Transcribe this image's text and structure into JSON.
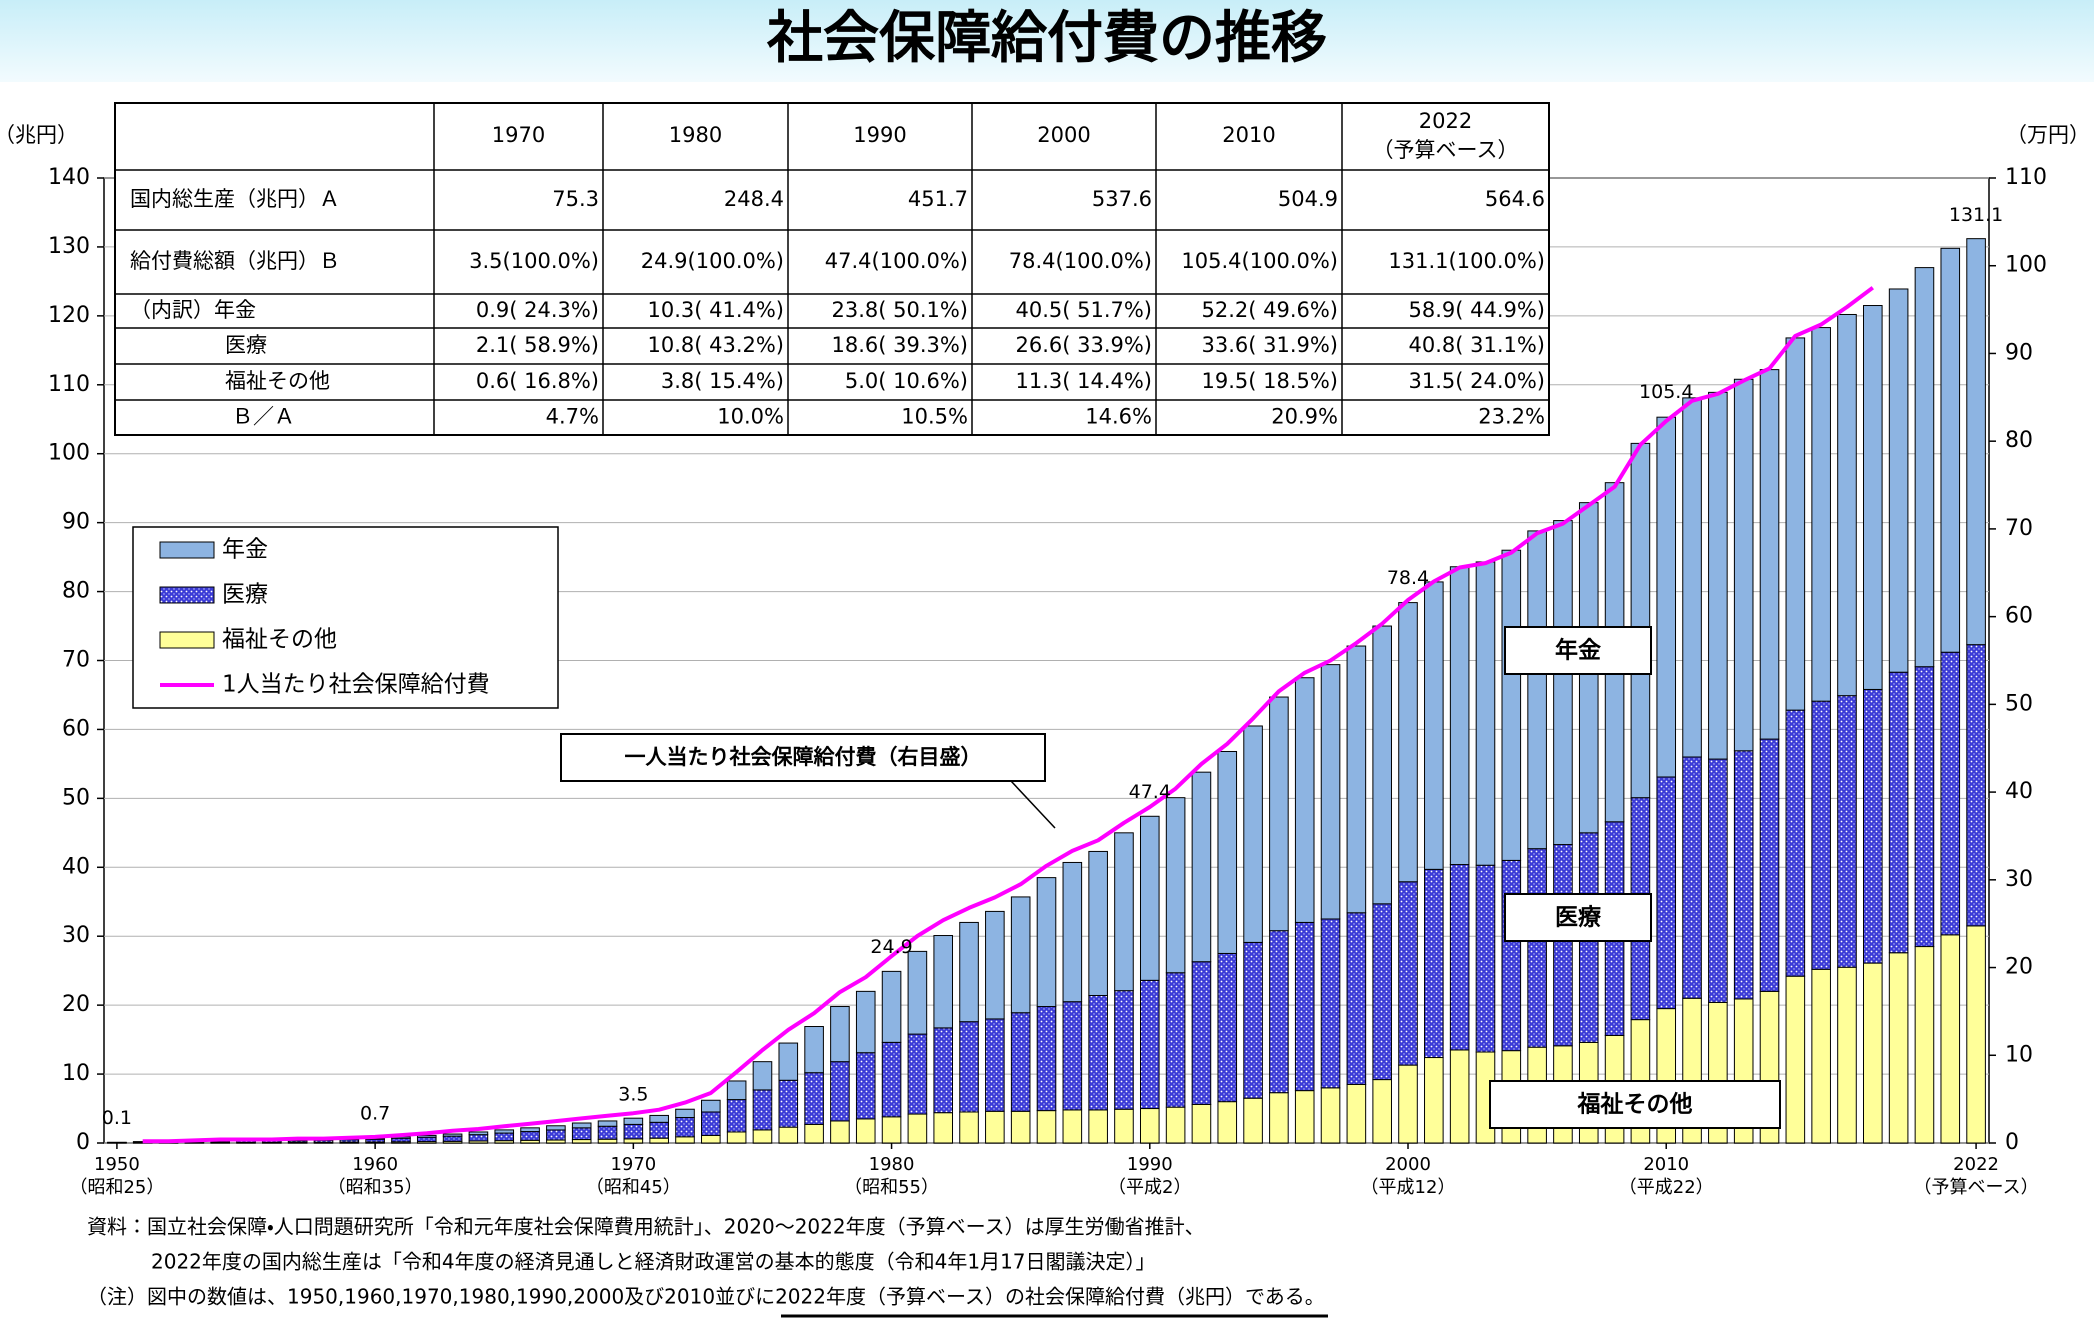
{
  "chart_data": {
    "type": "stacked-bar",
    "title": "社会保障給付費の推移",
    "y_unit": "（兆円）",
    "y2_unit": "（万円）",
    "ylim": [
      0,
      140
    ],
    "yticks": [
      0,
      10,
      20,
      30,
      40,
      50,
      60,
      70,
      80,
      90,
      100,
      110,
      120,
      130,
      140
    ],
    "y2lim": [
      0,
      110
    ],
    "y2ticks": [
      0,
      10,
      20,
      30,
      40,
      50,
      60,
      70,
      80,
      90,
      100,
      110
    ],
    "xlim": [
      1949.5,
      2022.5
    ],
    "xticks": [
      1950,
      1960,
      1970,
      1980,
      1990,
      2000,
      2010,
      2022
    ],
    "x_era_labels": [
      "（昭和25）",
      "（昭和35）",
      "（昭和45）",
      "（昭和55）",
      "（平成2）",
      "（平成12）",
      "（平成22）",
      "（予算ベース）"
    ],
    "grid": true,
    "x": [
      1950,
      1951,
      1952,
      1953,
      1954,
      1955,
      1956,
      1957,
      1958,
      1959,
      1960,
      1961,
      1962,
      1963,
      1964,
      1965,
      1966,
      1967,
      1968,
      1969,
      1970,
      1971,
      1972,
      1973,
      1974,
      1975,
      1976,
      1977,
      1978,
      1979,
      1980,
      1981,
      1982,
      1983,
      1984,
      1985,
      1986,
      1987,
      1988,
      1989,
      1990,
      1991,
      1992,
      1993,
      1994,
      1995,
      1996,
      1997,
      1998,
      1999,
      2000,
      2001,
      2002,
      2003,
      2004,
      2005,
      2006,
      2007,
      2008,
      2009,
      2010,
      2011,
      2012,
      2013,
      2014,
      2015,
      2016,
      2017,
      2018,
      2019,
      2020,
      2021,
      2022
    ],
    "series": [
      {
        "name": "年金",
        "color": "#8db4e2",
        "values": [
          0.02,
          0.04,
          0.04,
          0.06,
          0.06,
          0.08,
          0.08,
          0.08,
          0.1,
          0.12,
          0.15,
          0.21,
          0.26,
          0.31,
          0.39,
          0.46,
          0.54,
          0.61,
          0.7,
          0.77,
          0.9,
          1.0,
          1.2,
          1.7,
          2.7,
          4.1,
          5.4,
          6.7,
          8.0,
          8.9,
          10.3,
          12.0,
          13.4,
          14.4,
          15.6,
          16.8,
          18.7,
          20.2,
          20.9,
          22.9,
          23.8,
          25.4,
          27.5,
          29.3,
          31.4,
          33.9,
          35.5,
          36.9,
          38.7,
          40.3,
          40.5,
          41.7,
          43.2,
          44.0,
          45.0,
          46.1,
          47.0,
          47.9,
          49.2,
          51.4,
          52.2,
          52.1,
          53.2,
          53.9,
          53.6,
          54.0,
          54.2,
          55.3,
          55.7,
          55.6,
          57.9,
          58.6,
          58.9
        ]
      },
      {
        "name": "医療",
        "color": "#3b3bd6",
        "values": [
          0.05,
          0.11,
          0.11,
          0.16,
          0.16,
          0.22,
          0.22,
          0.22,
          0.28,
          0.34,
          0.4,
          0.51,
          0.63,
          0.75,
          0.92,
          1.1,
          1.27,
          1.46,
          1.7,
          1.88,
          2.1,
          2.3,
          2.8,
          3.4,
          4.7,
          5.8,
          6.8,
          7.5,
          8.6,
          9.6,
          10.8,
          11.6,
          12.3,
          13.1,
          13.4,
          14.3,
          15.1,
          15.7,
          16.6,
          17.2,
          18.6,
          19.5,
          20.7,
          21.5,
          22.6,
          23.5,
          24.4,
          24.5,
          24.9,
          25.5,
          26.6,
          27.3,
          26.9,
          27.1,
          27.6,
          28.8,
          29.2,
          30.4,
          31.0,
          32.2,
          33.6,
          35.0,
          35.3,
          36.0,
          36.6,
          38.6,
          38.9,
          39.4,
          39.7,
          40.7,
          40.6,
          41.0,
          40.8
        ]
      },
      {
        "name": "福祉その他",
        "color": "#ffff99",
        "values": [
          0.03,
          0.05,
          0.05,
          0.08,
          0.08,
          0.1,
          0.1,
          0.1,
          0.12,
          0.14,
          0.15,
          0.18,
          0.21,
          0.24,
          0.29,
          0.34,
          0.39,
          0.43,
          0.5,
          0.55,
          0.6,
          0.7,
          0.9,
          1.1,
          1.6,
          1.9,
          2.3,
          2.7,
          3.2,
          3.5,
          3.8,
          4.2,
          4.4,
          4.5,
          4.6,
          4.6,
          4.7,
          4.8,
          4.8,
          4.9,
          5.0,
          5.2,
          5.6,
          6.0,
          6.5,
          7.3,
          7.6,
          8.0,
          8.5,
          9.2,
          11.3,
          12.4,
          13.5,
          13.2,
          13.4,
          13.9,
          14.1,
          14.6,
          15.6,
          17.9,
          19.5,
          21.0,
          20.4,
          20.9,
          22.0,
          24.2,
          25.2,
          25.5,
          26.1,
          27.6,
          28.5,
          30.2,
          31.5
        ]
      },
      {
        "name": "1人当たり社会保障給付費",
        "color": "#ff00ff",
        "type": "line",
        "axis": "y2",
        "x": [
          1951,
          1952,
          1953,
          1954,
          1955,
          1956,
          1957,
          1958,
          1959,
          1960,
          1961,
          1962,
          1963,
          1964,
          1965,
          1966,
          1967,
          1968,
          1969,
          1970,
          1971,
          1972,
          1973,
          1974,
          1975,
          1976,
          1977,
          1978,
          1979,
          1980,
          1981,
          1982,
          1983,
          1984,
          1985,
          1986,
          1987,
          1988,
          1989,
          1990,
          1991,
          1992,
          1993,
          1994,
          1995,
          1996,
          1997,
          1998,
          1999,
          2000,
          2001,
          2002,
          2003,
          2004,
          2005,
          2006,
          2007,
          2008,
          2009,
          2010,
          2011,
          2012,
          2013,
          2014,
          2015,
          2016,
          2017,
          2018
        ],
        "values": [
          0.2,
          0.2,
          0.3,
          0.4,
          0.4,
          0.4,
          0.5,
          0.5,
          0.6,
          0.7,
          0.9,
          1.1,
          1.4,
          1.6,
          1.9,
          2.2,
          2.5,
          2.8,
          3.1,
          3.4,
          3.8,
          4.6,
          5.7,
          8.1,
          10.6,
          12.9,
          14.8,
          17.2,
          18.9,
          21.3,
          23.6,
          25.4,
          26.8,
          28.0,
          29.5,
          31.6,
          33.3,
          34.5,
          36.5,
          38.3,
          40.4,
          43.2,
          45.5,
          48.4,
          51.5,
          53.6,
          55.0,
          57.0,
          59.2,
          61.9,
          64.0,
          65.6,
          66.1,
          67.3,
          69.5,
          70.6,
          72.7,
          74.8,
          79.6,
          82.3,
          84.6,
          85.4,
          86.9,
          88.3,
          92.0,
          93.3,
          95.3,
          97.5
        ]
      }
    ],
    "bar_labels": [
      {
        "x": 1950,
        "value": 0.1
      },
      {
        "x": 1960,
        "value": 0.7
      },
      {
        "x": 1970,
        "value": 3.5
      },
      {
        "x": 1980,
        "value": 24.9
      },
      {
        "x": 1990,
        "value": 47.4
      },
      {
        "x": 2000,
        "value": 78.4
      },
      {
        "x": 2010,
        "value": 105.4
      },
      {
        "x": 2022,
        "value": 131.1
      }
    ],
    "callout": "一人当たり社会保障給付費（右目盛）",
    "table": {
      "columns": [
        "1970",
        "1980",
        "1990",
        "2000",
        "2010",
        "2022"
      ],
      "column_note": "（予算ベース）",
      "rows": [
        [
          "国内総生産（兆円）Ａ",
          "75.3",
          "248.4",
          "451.7",
          "537.6",
          "504.9",
          "564.6"
        ],
        [
          "給付費総額（兆円）Ｂ",
          "3.5(100.0%)",
          "24.9(100.0%)",
          "47.4(100.0%)",
          "78.4(100.0%)",
          "105.4(100.0%)",
          "131.1(100.0%)"
        ],
        [
          "（内訳）年金",
          "0.9( 24.3%)",
          "10.3( 41.4%)",
          "23.8( 50.1%)",
          "40.5( 51.7%)",
          "52.2( 49.6%)",
          "58.9( 44.9%)"
        ],
        [
          "医療",
          "2.1( 58.9%)",
          "10.8( 43.2%)",
          "18.6( 39.3%)",
          "26.6( 33.9%)",
          "33.6( 31.9%)",
          "40.8( 31.1%)"
        ],
        [
          "福祉その他",
          "0.6( 16.8%)",
          "3.8( 15.4%)",
          "5.0( 10.6%)",
          "11.3( 14.4%)",
          "19.5( 18.5%)",
          "31.5( 24.0%)"
        ],
        [
          "Ｂ／Ａ",
          "4.7%",
          "10.0%",
          "10.5%",
          "14.6%",
          "20.9%",
          "23.2%"
        ]
      ]
    },
    "notes": [
      "資料：国立社会保障・人口問題研究所「令和元年度社会保障費用統計」、2020～2022年度（予算ベース）は厚生労働省推計、",
      "2022年度の国内総生産は「令和4年度の経済見通しと経済財政運営の基本的態度（令和4年1月17日閣議決定）」",
      "（注）図中の数値は、1950,1960,1970,1980,1990,2000及び2010並びに2022年度（予算ベース）の社会保障給付費（兆円）である。"
    ]
  }
}
